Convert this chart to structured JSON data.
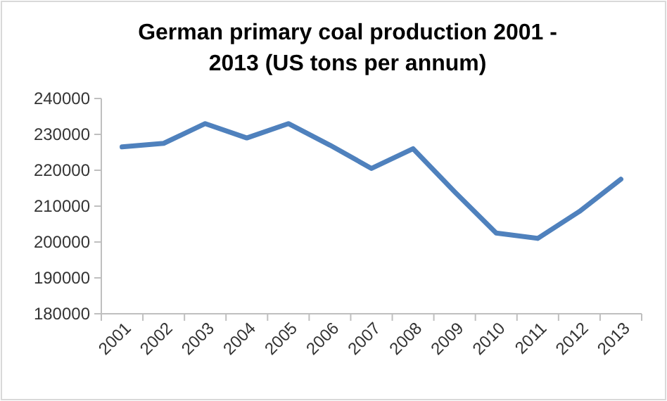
{
  "chart_data": {
    "type": "line",
    "title": "German primary coal production 2001 - 2013 (US tons per annum)",
    "categories": [
      "2001",
      "2002",
      "2003",
      "2004",
      "2005",
      "2006",
      "2007",
      "2008",
      "2009",
      "2010",
      "2011",
      "2012",
      "2013"
    ],
    "series": [
      {
        "color": "#4f81bd",
        "values": [
          226500,
          227500,
          233000,
          229000,
          233000,
          227000,
          220500,
          226000,
          214000,
          202500,
          201000,
          208500,
          217500
        ]
      }
    ],
    "ylim": [
      180000,
      240000
    ],
    "yticks": [
      180000,
      190000,
      200000,
      210000,
      220000,
      230000,
      240000
    ],
    "grid": false,
    "marker": "none",
    "line_style": "solid"
  }
}
